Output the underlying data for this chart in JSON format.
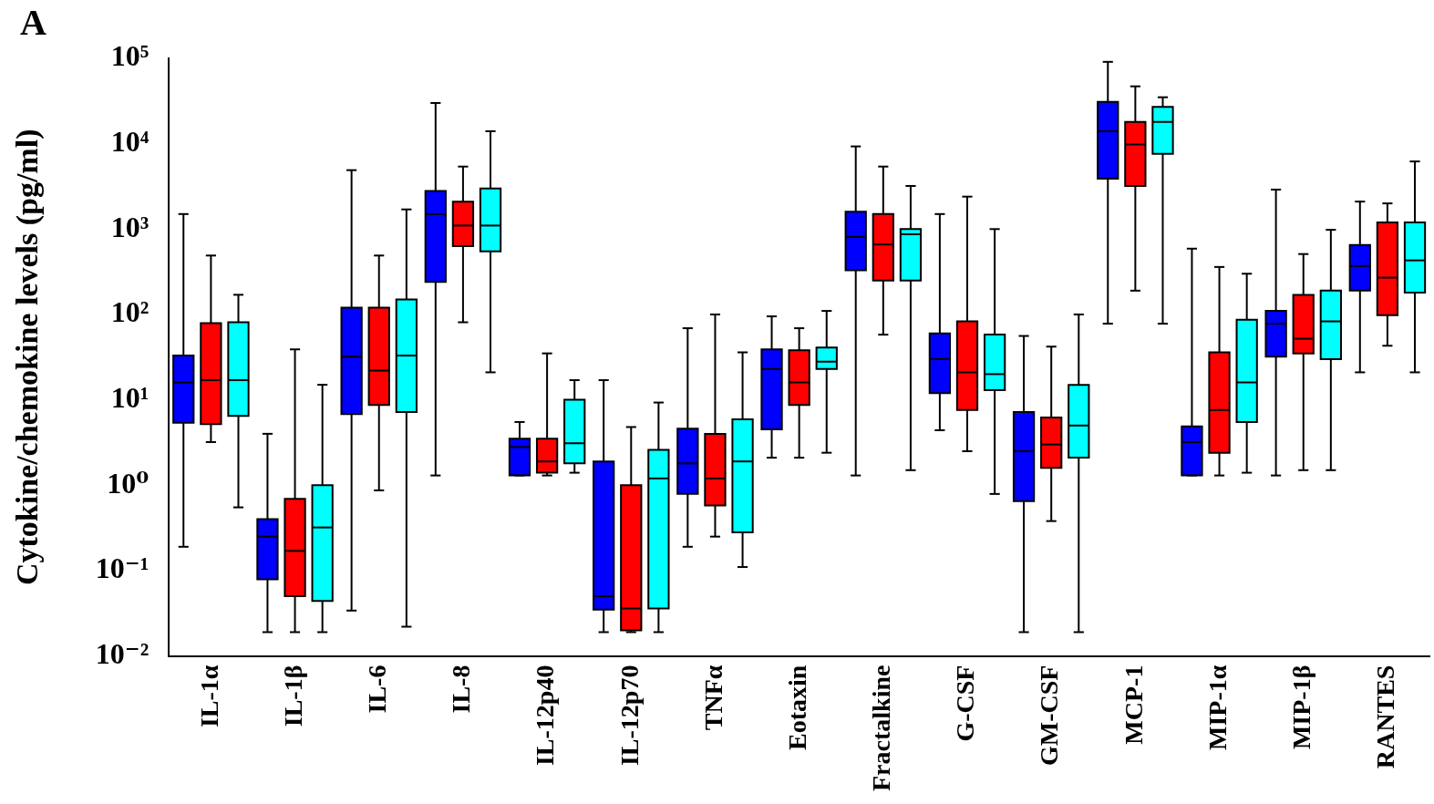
{
  "chart_data": {
    "type": "box",
    "ylabel": "Cytokine/chemokine levels (pg/ml)",
    "annotations": [
      "A"
    ],
    "categories": [
      "IL-1α",
      "IL-1β",
      "IL-6",
      "IL-8",
      "IL-12p40",
      "IL-12p70",
      "TNFα",
      "Eotaxin",
      "Fractalkine",
      "G-CSF",
      "GM-CSF",
      "MCP-1",
      "MIP-1α",
      "MIP-1β",
      "RANTES"
    ],
    "log": "y",
    "ylim": [
      0.01,
      100000
    ],
    "yticks": [
      {
        "value": 0.01,
        "label": "10⁻²"
      },
      {
        "value": 0.1,
        "label": "10⁻¹"
      },
      {
        "value": 1,
        "label": "10⁰"
      },
      {
        "value": 10,
        "label": "10¹"
      },
      {
        "value": 100,
        "label": "10²"
      },
      {
        "value": 1000,
        "label": "10³"
      },
      {
        "value": 10000,
        "label": "10⁴"
      },
      {
        "value": 100000,
        "label": "10⁵"
      }
    ],
    "series": [
      {
        "color": "#0000ff",
        "boxes": [
          {
            "low": 0.19,
            "q1": 5.4,
            "median": 16,
            "q3": 33,
            "high": 1500
          },
          {
            "low": 0.019,
            "q1": 0.079,
            "median": 0.25,
            "q3": 0.4,
            "high": 4
          },
          {
            "low": 0.034,
            "q1": 6.8,
            "median": 32,
            "q3": 120,
            "high": 4900
          },
          {
            "low": 1.3,
            "q1": 240,
            "median": 1500,
            "q3": 2800,
            "high": 30000
          },
          {
            "low": 1.3,
            "q1": 1.3,
            "median": 2.8,
            "q3": 3.5,
            "high": 5.5
          },
          {
            "low": 0.019,
            "q1": 0.035,
            "median": 0.05,
            "q3": 1.9,
            "high": 17
          },
          {
            "low": 0.19,
            "q1": 0.79,
            "median": 1.8,
            "q3": 4.6,
            "high": 69
          },
          {
            "low": 2.1,
            "q1": 4.5,
            "median": 23,
            "q3": 39,
            "high": 95
          },
          {
            "low": 1.3,
            "q1": 330,
            "median": 810,
            "q3": 1600,
            "high": 9300
          },
          {
            "low": 4.4,
            "q1": 12,
            "median": 30,
            "q3": 60,
            "high": 1500
          },
          {
            "low": 0.019,
            "q1": 0.65,
            "median": 2.5,
            "q3": 7.2,
            "high": 56
          },
          {
            "low": 78,
            "q1": 3900,
            "median": 14000,
            "q3": 31000,
            "high": 91000
          },
          {
            "low": 1.3,
            "q1": 1.3,
            "median": 3.2,
            "q3": 4.9,
            "high": 590
          },
          {
            "low": 1.3,
            "q1": 32,
            "median": 78,
            "q3": 110,
            "high": 2900
          },
          {
            "low": 21,
            "q1": 190,
            "median": 370,
            "q3": 650,
            "high": 2100
          }
        ]
      },
      {
        "color": "#ff0000",
        "boxes": [
          {
            "low": 3.2,
            "q1": 5.2,
            "median": 17,
            "q3": 79,
            "high": 490
          },
          {
            "low": 0.019,
            "q1": 0.05,
            "median": 0.17,
            "q3": 0.69,
            "high": 39
          },
          {
            "low": 0.87,
            "q1": 8.7,
            "median": 22,
            "q3": 120,
            "high": 490
          },
          {
            "low": 81,
            "q1": 630,
            "median": 1100,
            "q3": 2100,
            "high": 5400
          },
          {
            "low": 1.3,
            "q1": 1.4,
            "median": 1.9,
            "q3": 3.5,
            "high": 35
          },
          {
            "low": 0.019,
            "q1": 0.02,
            "median": 0.036,
            "q3": 1,
            "high": 4.8
          },
          {
            "low": 0.25,
            "q1": 0.58,
            "median": 1.2,
            "q3": 4,
            "high": 100
          },
          {
            "low": 2.1,
            "q1": 8.7,
            "median": 16,
            "q3": 38,
            "high": 69
          },
          {
            "low": 58,
            "q1": 250,
            "median": 660,
            "q3": 1500,
            "high": 5400
          },
          {
            "low": 2.5,
            "q1": 7.6,
            "median": 21,
            "q3": 83,
            "high": 2400
          },
          {
            "low": 0.38,
            "q1": 1.6,
            "median": 3,
            "q3": 6.2,
            "high": 42
          },
          {
            "low": 190,
            "q1": 3200,
            "median": 9800,
            "q3": 18000,
            "high": 47000
          },
          {
            "low": 1.3,
            "q1": 2.4,
            "median": 7.6,
            "q3": 36,
            "high": 360
          },
          {
            "low": 1.5,
            "q1": 35,
            "median": 52,
            "q3": 170,
            "high": 510
          },
          {
            "low": 43,
            "q1": 98,
            "median": 270,
            "q3": 1200,
            "high": 2000
          }
        ]
      },
      {
        "color": "#00ffff",
        "boxes": [
          {
            "low": 0.55,
            "q1": 6.5,
            "median": 17,
            "q3": 81,
            "high": 170
          },
          {
            "low": 0.019,
            "q1": 0.044,
            "median": 0.32,
            "q3": 1,
            "high": 15
          },
          {
            "low": 0.022,
            "q1": 7.2,
            "median": 33,
            "q3": 150,
            "high": 1700
          },
          {
            "low": 21,
            "q1": 550,
            "median": 1100,
            "q3": 3000,
            "high": 14000
          },
          {
            "low": 1.4,
            "q1": 1.8,
            "median": 3.1,
            "q3": 10,
            "high": 17
          },
          {
            "low": 0.019,
            "q1": 0.036,
            "median": 1.2,
            "q3": 2.6,
            "high": 9.3
          },
          {
            "low": 0.11,
            "q1": 0.28,
            "median": 1.9,
            "q3": 5.9,
            "high": 36
          },
          {
            "low": 2.4,
            "q1": 23,
            "median": 28,
            "q3": 41,
            "high": 110
          },
          {
            "low": 1.5,
            "q1": 250,
            "median": 870,
            "q3": 1000,
            "high": 3200
          },
          {
            "low": 0.79,
            "q1": 13,
            "median": 20,
            "q3": 58,
            "high": 1000
          },
          {
            "low": 0.019,
            "q1": 2.1,
            "median": 5,
            "q3": 15,
            "high": 100
          },
          {
            "low": 78,
            "q1": 7600,
            "median": 18000,
            "q3": 27000,
            "high": 35000
          },
          {
            "low": 1.4,
            "q1": 5.5,
            "median": 16,
            "q3": 87,
            "high": 300
          },
          {
            "low": 1.5,
            "q1": 30,
            "median": 83,
            "q3": 190,
            "high": 980
          },
          {
            "low": 21,
            "q1": 180,
            "median": 430,
            "q3": 1200,
            "high": 6200
          }
        ]
      }
    ]
  }
}
